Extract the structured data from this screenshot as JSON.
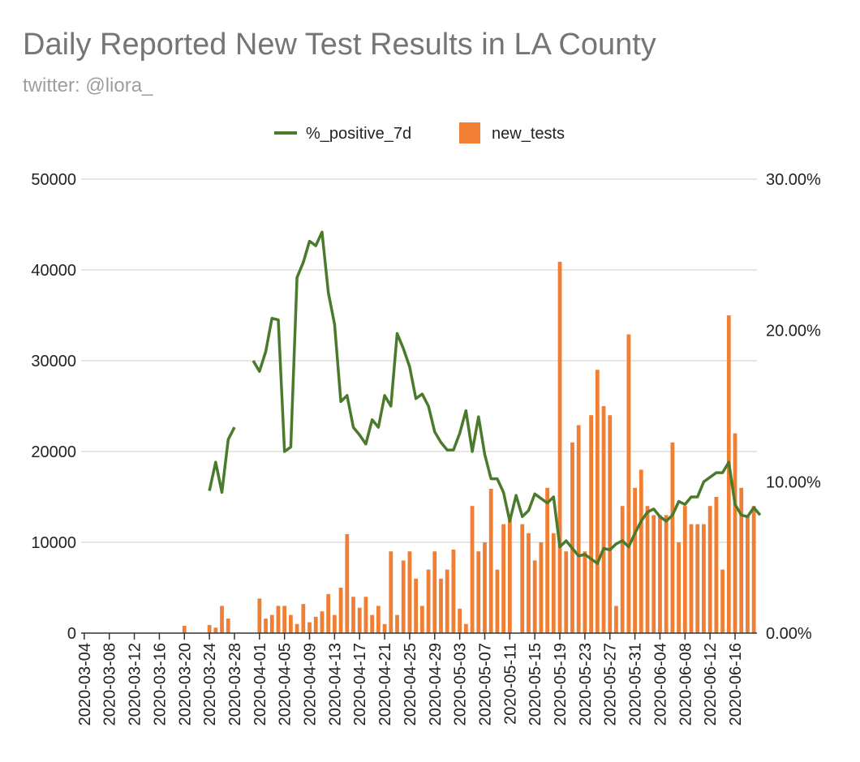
{
  "chart_data": {
    "type": "bar",
    "title": "Daily Reported New Test Results in LA County",
    "subtitle": "twitter: @liora_",
    "xlabel": "",
    "ylabel": "",
    "legend": {
      "position": "top-center",
      "entries": [
        {
          "name": "%_positive_7d",
          "kind": "line",
          "color": "#4a7a2c"
        },
        {
          "name": "new_tests",
          "kind": "bar",
          "color": "#f07f34"
        }
      ]
    },
    "y_left": {
      "min": 0,
      "max": 50000,
      "ticks": [
        "0",
        "10000",
        "20000",
        "30000",
        "40000",
        "50000"
      ],
      "tick_values": [
        0,
        10000,
        20000,
        30000,
        40000,
        50000
      ]
    },
    "y_right": {
      "min": 0,
      "max": 30,
      "ticks": [
        "0.00%",
        "10.00%",
        "20.00%",
        "30.00%"
      ],
      "tick_values": [
        0,
        10,
        20,
        30
      ]
    },
    "x_tick_labels": [
      "2020-03-04",
      "2020-03-08",
      "2020-03-12",
      "2020-03-16",
      "2020-03-20",
      "2020-03-24",
      "2020-03-28",
      "2020-04-01",
      "2020-04-05",
      "2020-04-09",
      "2020-04-13",
      "2020-04-17",
      "2020-04-21",
      "2020-04-25",
      "2020-04-29",
      "2020-05-03",
      "2020-05-07",
      "2020-05-11",
      "2020-05-15",
      "2020-05-19",
      "2020-05-23",
      "2020-05-27",
      "2020-05-31",
      "2020-06-04",
      "2020-06-08",
      "2020-06-12",
      "2020-06-16"
    ],
    "x_start": "2020-03-04",
    "x_end": "2020-06-19",
    "grid": true,
    "series": [
      {
        "name": "new_tests",
        "axis": "left",
        "color": "#f07f34",
        "values": [
          0,
          0,
          0,
          0,
          0,
          0,
          0,
          0,
          0,
          0,
          0,
          0,
          0,
          0,
          0,
          0,
          800,
          0,
          0,
          0,
          900,
          600,
          3000,
          1600,
          0,
          0,
          0,
          0,
          3800,
          1600,
          2000,
          3000,
          3000,
          2000,
          1000,
          3200,
          1200,
          1800,
          2400,
          4300,
          2000,
          5000,
          10900,
          4000,
          2800,
          4000,
          2000,
          3000,
          1000,
          9000,
          2000,
          8000,
          9000,
          6000,
          3000,
          7000,
          9000,
          6000,
          7000,
          9200,
          2700,
          1000,
          14000,
          9000,
          10000,
          15900,
          7000,
          12000,
          13000,
          0,
          12000,
          11000,
          8000,
          10000,
          16000,
          11000,
          40900,
          9000,
          21000,
          22900,
          9000,
          24000,
          29000,
          25000,
          24000,
          3000,
          14000,
          32900,
          16000,
          18000,
          14000,
          13000,
          13000,
          13000,
          21000,
          10000,
          14000,
          12000,
          12000,
          12000,
          14000,
          15000,
          7000,
          35000,
          22000,
          16000,
          13000,
          14000
        ]
      },
      {
        "name": "%_positive_7d",
        "axis": "right",
        "color": "#4a7a2c",
        "values": [
          null,
          null,
          null,
          null,
          null,
          null,
          null,
          null,
          null,
          null,
          null,
          null,
          null,
          null,
          null,
          null,
          null,
          null,
          null,
          null,
          9.4,
          11.3,
          9.3,
          12.8,
          13.6,
          null,
          null,
          18,
          17.3,
          18.6,
          20.8,
          20.7,
          12.0,
          12.3,
          23.5,
          24.5,
          25.9,
          25.6,
          26.5,
          22.5,
          20.4,
          15.3,
          15.7,
          13.6,
          13.1,
          12.5,
          14.1,
          13.6,
          15.7,
          15.0,
          19.8,
          18.8,
          17.6,
          15.5,
          15.8,
          15.0,
          13.3,
          12.6,
          12.1,
          12.1,
          13.2,
          14.7,
          12.0,
          14.3,
          11.8,
          10.2,
          10.2,
          9.3,
          7.4,
          9.1,
          7.7,
          8.1,
          9.2,
          8.9,
          8.6,
          9.0,
          5.7,
          6.1,
          5.6,
          5.1,
          5.2,
          4.9,
          4.6,
          5.6,
          5.5,
          5.9,
          6.1,
          5.7,
          6.6,
          7.4,
          8.0,
          8.2,
          7.7,
          7.4,
          7.8,
          8.7,
          8.5,
          9.0,
          9.0,
          10.0,
          10.3,
          10.6,
          10.6,
          11.3,
          8.5,
          7.8,
          7.7,
          8.3,
          7.8
        ]
      }
    ]
  }
}
